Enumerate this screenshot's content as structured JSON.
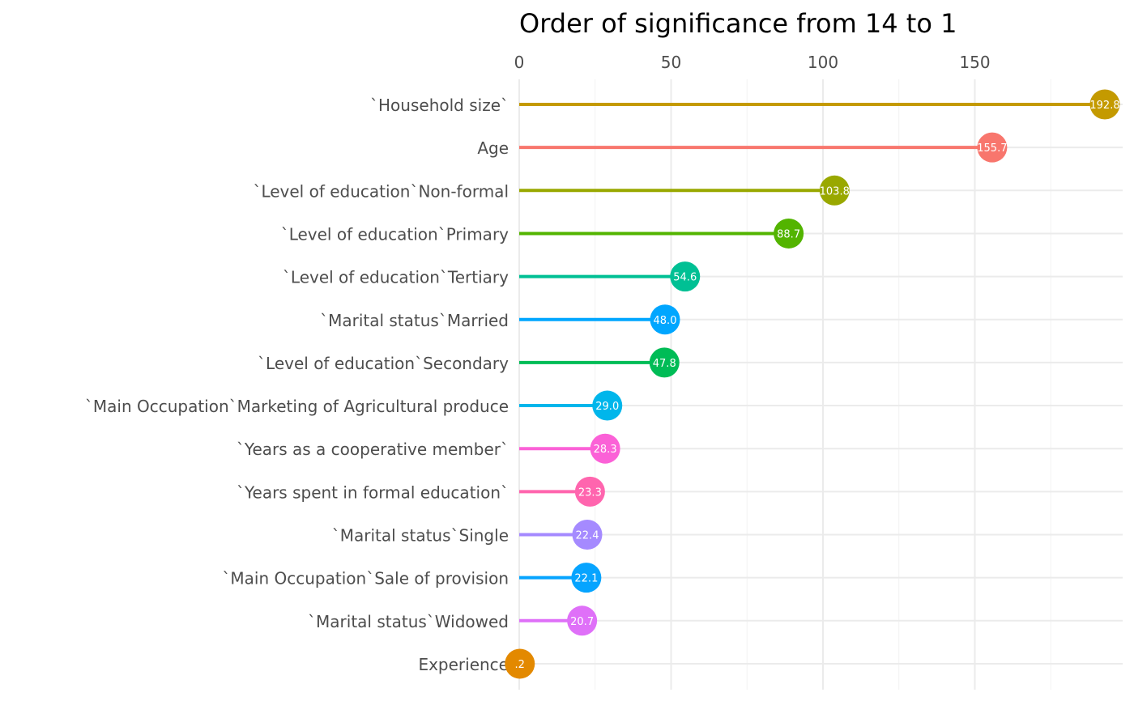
{
  "chart_data": {
    "type": "lollipop",
    "title": "Order of significance from 14 to 1",
    "xlabel": "",
    "ylabel": "",
    "x_axis_position": "top",
    "xlim": [
      0,
      198
    ],
    "x_ticks": [
      0,
      50,
      100,
      150
    ],
    "x_minor_ticks": [
      25,
      75,
      125,
      175
    ],
    "grid": true,
    "legend": "none",
    "categories": [
      "`Household size`",
      "Age",
      "`Level  of education`Non-formal",
      "`Level  of education`Primary",
      "`Level  of education`Tertiary",
      "`Marital status`Married",
      "`Level  of education`Secondary",
      "`Main Occupation`Marketing of Agricultural produce",
      "`Years as a cooperative member`",
      "`Years spent in formal education`",
      "`Marital status`Single",
      "`Main Occupation`Sale of provision",
      "`Marital status`Widowed",
      "Experience"
    ],
    "values": [
      192.8,
      155.7,
      103.8,
      88.7,
      54.6,
      48.0,
      47.8,
      29.0,
      28.3,
      23.3,
      22.4,
      22.1,
      20.7,
      0.2
    ],
    "labels": [
      "192.8",
      "155.7",
      "103.8",
      "88.7",
      "54.6",
      "48.0",
      "47.8",
      "29.0",
      "28.3",
      "23.3",
      "22.4",
      "22.1",
      "20.7",
      ".2"
    ],
    "colors": [
      "#C49A00",
      "#F8766D",
      "#99A800",
      "#53B400",
      "#00C094",
      "#00A6FF",
      "#00BC56",
      "#00B6EB",
      "#FB61D7",
      "#FF65AE",
      "#A58AFF",
      "#06A4FF",
      "#DF70F8",
      "#E38900"
    ]
  }
}
